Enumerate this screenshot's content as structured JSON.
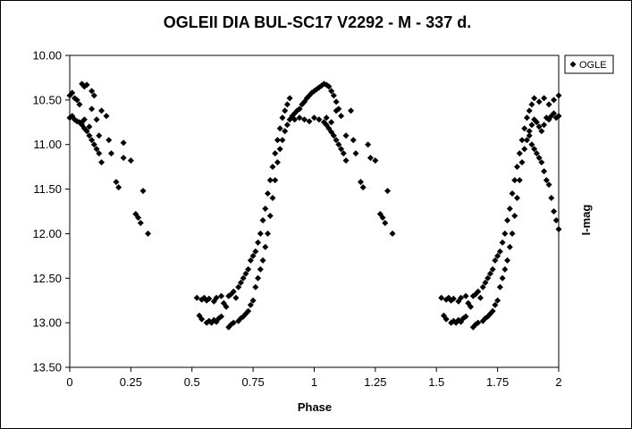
{
  "chart_data": {
    "type": "scatter",
    "title": "OGLEII DIA BUL-SC17 V2292 - M - 337 d.",
    "xlabel": "Phase",
    "ylabel": "I-mag",
    "xlim": [
      0,
      2
    ],
    "ylim": [
      10.0,
      13.5
    ],
    "y_inverted": true,
    "x_ticks": [
      0,
      0.25,
      0.5,
      0.75,
      1,
      1.25,
      1.5,
      1.75,
      2
    ],
    "x_tick_labels": [
      "0",
      "0.25",
      "0.5",
      "0.75",
      "1",
      "1.25",
      "1.5",
      "1.75",
      "2"
    ],
    "y_ticks": [
      10.0,
      10.5,
      11.0,
      11.5,
      12.0,
      12.5,
      13.0,
      13.5
    ],
    "y_tick_labels": [
      "10.00",
      "10.50",
      "11.00",
      "11.50",
      "12.00",
      "12.50",
      "13.00",
      "13.50"
    ],
    "grid": false,
    "legend_position": "top-right",
    "marker": "diamond",
    "series": [
      {
        "name": "OGLE",
        "color": "#000000",
        "points": [
          [
            0.0,
            10.45
          ],
          [
            0.01,
            10.42
          ],
          [
            0.02,
            10.48
          ],
          [
            0.03,
            10.5
          ],
          [
            0.04,
            10.55
          ],
          [
            0.05,
            10.32
          ],
          [
            0.06,
            10.35
          ],
          [
            0.07,
            10.33
          ],
          [
            0.09,
            10.4
          ],
          [
            0.1,
            10.45
          ],
          [
            0.0,
            10.7
          ],
          [
            0.01,
            10.68
          ],
          [
            0.02,
            10.72
          ],
          [
            0.03,
            10.74
          ],
          [
            0.04,
            10.75
          ],
          [
            0.05,
            10.78
          ],
          [
            0.06,
            10.82
          ],
          [
            0.07,
            10.85
          ],
          [
            0.08,
            10.9
          ],
          [
            0.09,
            10.95
          ],
          [
            0.1,
            11.0
          ],
          [
            0.11,
            11.05
          ],
          [
            0.12,
            11.1
          ],
          [
            0.13,
            11.2
          ],
          [
            0.05,
            10.75
          ],
          [
            0.06,
            10.72
          ],
          [
            0.08,
            10.8
          ],
          [
            0.09,
            10.6
          ],
          [
            0.11,
            10.72
          ],
          [
            0.12,
            10.9
          ],
          [
            0.13,
            10.62
          ],
          [
            0.15,
            10.68
          ],
          [
            0.16,
            10.95
          ],
          [
            0.17,
            11.1
          ],
          [
            0.19,
            11.42
          ],
          [
            0.2,
            11.48
          ],
          [
            0.22,
            10.98
          ],
          [
            0.22,
            11.15
          ],
          [
            0.25,
            11.18
          ],
          [
            0.27,
            11.78
          ],
          [
            0.28,
            11.82
          ],
          [
            0.29,
            11.88
          ],
          [
            0.3,
            11.52
          ],
          [
            0.32,
            12.0
          ],
          [
            0.52,
            12.72
          ],
          [
            0.54,
            12.74
          ],
          [
            0.55,
            12.72
          ],
          [
            0.56,
            12.75
          ],
          [
            0.57,
            12.73
          ],
          [
            0.59,
            12.76
          ],
          [
            0.6,
            12.72
          ],
          [
            0.62,
            12.7
          ],
          [
            0.53,
            12.92
          ],
          [
            0.54,
            12.96
          ],
          [
            0.56,
            13.0
          ],
          [
            0.57,
            12.98
          ],
          [
            0.58,
            13.0
          ],
          [
            0.59,
            12.97
          ],
          [
            0.6,
            12.99
          ],
          [
            0.61,
            12.95
          ],
          [
            0.62,
            12.93
          ],
          [
            0.63,
            12.78
          ],
          [
            0.64,
            12.82
          ],
          [
            0.65,
            12.7
          ],
          [
            0.66,
            12.68
          ],
          [
            0.67,
            12.65
          ],
          [
            0.68,
            12.72
          ],
          [
            0.69,
            12.6
          ],
          [
            0.7,
            12.55
          ],
          [
            0.71,
            12.5
          ],
          [
            0.72,
            12.45
          ],
          [
            0.73,
            12.4
          ],
          [
            0.74,
            12.3
          ],
          [
            0.75,
            12.25
          ],
          [
            0.76,
            12.2
          ],
          [
            0.77,
            12.1
          ],
          [
            0.78,
            12.0
          ],
          [
            0.79,
            11.85
          ],
          [
            0.8,
            11.72
          ],
          [
            0.81,
            11.55
          ],
          [
            0.82,
            11.4
          ],
          [
            0.83,
            11.25
          ],
          [
            0.84,
            11.1
          ],
          [
            0.85,
            10.95
          ],
          [
            0.86,
            10.82
          ],
          [
            0.87,
            10.7
          ],
          [
            0.88,
            10.62
          ],
          [
            0.89,
            10.55
          ],
          [
            0.9,
            10.48
          ],
          [
            0.65,
            13.05
          ],
          [
            0.66,
            13.02
          ],
          [
            0.67,
            13.0
          ],
          [
            0.69,
            12.98
          ],
          [
            0.7,
            12.95
          ],
          [
            0.71,
            12.93
          ],
          [
            0.72,
            12.9
          ],
          [
            0.73,
            12.87
          ],
          [
            0.74,
            12.8
          ],
          [
            0.75,
            12.75
          ],
          [
            0.76,
            12.6
          ],
          [
            0.77,
            12.5
          ],
          [
            0.78,
            12.4
          ],
          [
            0.79,
            12.3
          ],
          [
            0.8,
            12.15
          ],
          [
            0.81,
            12.0
          ],
          [
            0.82,
            11.8
          ],
          [
            0.83,
            11.6
          ],
          [
            0.84,
            11.4
          ],
          [
            0.85,
            11.2
          ],
          [
            0.86,
            11.05
          ],
          [
            0.87,
            10.95
          ],
          [
            0.88,
            10.85
          ],
          [
            0.89,
            10.78
          ],
          [
            0.9,
            10.72
          ],
          [
            0.91,
            10.68
          ],
          [
            0.92,
            10.65
          ],
          [
            0.93,
            10.62
          ],
          [
            0.94,
            10.6
          ],
          [
            0.95,
            10.55
          ],
          [
            0.96,
            10.52
          ],
          [
            0.97,
            10.48
          ],
          [
            0.98,
            10.45
          ],
          [
            0.99,
            10.42
          ],
          [
            1.0,
            10.4
          ],
          [
            1.01,
            10.38
          ],
          [
            1.02,
            10.36
          ],
          [
            1.03,
            10.34
          ],
          [
            1.04,
            10.32
          ],
          [
            1.05,
            10.33
          ],
          [
            1.06,
            10.35
          ],
          [
            1.07,
            10.4
          ],
          [
            1.08,
            10.45
          ],
          [
            1.09,
            10.52
          ],
          [
            1.1,
            10.6
          ],
          [
            0.92,
            10.72
          ],
          [
            0.94,
            10.7
          ],
          [
            0.96,
            10.72
          ],
          [
            0.98,
            10.74
          ],
          [
            1.0,
            10.7
          ],
          [
            1.02,
            10.72
          ],
          [
            1.04,
            10.75
          ],
          [
            1.05,
            10.78
          ],
          [
            1.06,
            10.82
          ],
          [
            1.07,
            10.86
          ],
          [
            1.08,
            10.9
          ],
          [
            1.09,
            10.95
          ],
          [
            1.1,
            11.0
          ],
          [
            1.11,
            11.05
          ],
          [
            1.12,
            11.1
          ],
          [
            1.13,
            11.18
          ],
          [
            1.05,
            10.7
          ],
          [
            1.07,
            10.75
          ],
          [
            1.09,
            10.62
          ],
          [
            1.11,
            10.68
          ],
          [
            1.13,
            10.9
          ],
          [
            1.15,
            10.62
          ],
          [
            1.16,
            10.95
          ],
          [
            1.17,
            11.1
          ],
          [
            1.19,
            11.42
          ],
          [
            1.2,
            11.48
          ],
          [
            1.22,
            11.0
          ],
          [
            1.23,
            11.15
          ],
          [
            1.25,
            11.18
          ],
          [
            1.27,
            11.78
          ],
          [
            1.28,
            11.82
          ],
          [
            1.29,
            11.88
          ],
          [
            1.3,
            11.52
          ],
          [
            1.32,
            12.0
          ],
          [
            1.52,
            12.72
          ],
          [
            1.54,
            12.74
          ],
          [
            1.55,
            12.72
          ],
          [
            1.56,
            12.75
          ],
          [
            1.57,
            12.73
          ],
          [
            1.59,
            12.76
          ],
          [
            1.6,
            12.72
          ],
          [
            1.62,
            12.7
          ],
          [
            1.53,
            12.92
          ],
          [
            1.54,
            12.96
          ],
          [
            1.56,
            13.0
          ],
          [
            1.57,
            12.98
          ],
          [
            1.58,
            13.0
          ],
          [
            1.59,
            12.97
          ],
          [
            1.6,
            12.99
          ],
          [
            1.61,
            12.95
          ],
          [
            1.62,
            12.93
          ],
          [
            1.63,
            12.78
          ],
          [
            1.64,
            12.82
          ],
          [
            1.65,
            12.7
          ],
          [
            1.66,
            12.68
          ],
          [
            1.67,
            12.65
          ],
          [
            1.68,
            12.72
          ],
          [
            1.69,
            12.6
          ],
          [
            1.7,
            12.55
          ],
          [
            1.71,
            12.5
          ],
          [
            1.72,
            12.45
          ],
          [
            1.73,
            12.4
          ],
          [
            1.74,
            12.3
          ],
          [
            1.75,
            12.25
          ],
          [
            1.76,
            12.2
          ],
          [
            1.77,
            12.1
          ],
          [
            1.78,
            12.0
          ],
          [
            1.79,
            11.85
          ],
          [
            1.8,
            11.72
          ],
          [
            1.81,
            11.55
          ],
          [
            1.82,
            11.4
          ],
          [
            1.83,
            11.25
          ],
          [
            1.84,
            11.1
          ],
          [
            1.85,
            10.95
          ],
          [
            1.86,
            10.82
          ],
          [
            1.87,
            10.7
          ],
          [
            1.88,
            10.62
          ],
          [
            1.89,
            10.55
          ],
          [
            1.9,
            10.48
          ],
          [
            1.92,
            10.52
          ],
          [
            1.94,
            10.48
          ],
          [
            1.96,
            10.55
          ],
          [
            1.98,
            10.5
          ],
          [
            2.0,
            10.45
          ],
          [
            1.65,
            13.05
          ],
          [
            1.66,
            13.02
          ],
          [
            1.67,
            13.0
          ],
          [
            1.69,
            12.98
          ],
          [
            1.7,
            12.95
          ],
          [
            1.71,
            12.93
          ],
          [
            1.72,
            12.9
          ],
          [
            1.73,
            12.87
          ],
          [
            1.74,
            12.8
          ],
          [
            1.75,
            12.75
          ],
          [
            1.76,
            12.6
          ],
          [
            1.77,
            12.5
          ],
          [
            1.78,
            12.4
          ],
          [
            1.79,
            12.3
          ],
          [
            1.8,
            12.15
          ],
          [
            1.81,
            12.0
          ],
          [
            1.82,
            11.8
          ],
          [
            1.83,
            11.6
          ],
          [
            1.84,
            11.4
          ],
          [
            1.85,
            11.2
          ],
          [
            1.86,
            11.05
          ],
          [
            1.87,
            10.95
          ],
          [
            1.88,
            10.85
          ],
          [
            1.89,
            10.78
          ],
          [
            1.9,
            10.72
          ],
          [
            1.91,
            10.75
          ],
          [
            1.92,
            10.8
          ],
          [
            1.93,
            10.85
          ],
          [
            1.94,
            10.78
          ],
          [
            1.95,
            10.7
          ],
          [
            1.96,
            10.72
          ],
          [
            1.97,
            10.68
          ],
          [
            1.98,
            10.65
          ],
          [
            1.99,
            10.7
          ],
          [
            2.0,
            10.68
          ],
          [
            1.88,
            10.9
          ],
          [
            1.89,
            11.0
          ],
          [
            1.9,
            11.05
          ],
          [
            1.91,
            11.1
          ],
          [
            1.92,
            11.15
          ],
          [
            1.93,
            11.2
          ],
          [
            1.94,
            11.3
          ],
          [
            1.95,
            11.4
          ],
          [
            1.96,
            11.45
          ],
          [
            1.97,
            11.6
          ],
          [
            1.98,
            11.75
          ],
          [
            1.99,
            11.85
          ],
          [
            2.0,
            11.95
          ]
        ]
      }
    ]
  }
}
